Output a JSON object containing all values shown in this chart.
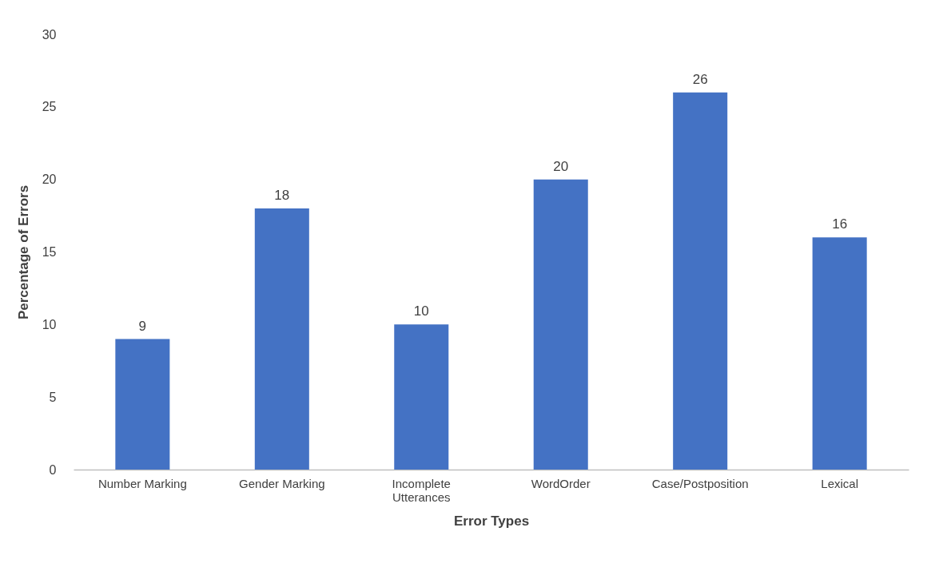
{
  "chart_data": {
    "type": "bar",
    "xlabel": "Error Types",
    "ylabel": "Percentage of Errors",
    "categories": [
      "Number Marking",
      "Gender Marking",
      "Incomplete Utterances",
      "WordOrder",
      "Case/Postposition",
      "Lexical"
    ],
    "values": [
      9,
      18,
      10,
      20,
      26,
      16
    ],
    "color": "#4472c4",
    "ylim": [
      0,
      30
    ],
    "yticks": [
      0,
      5,
      10,
      15,
      20,
      25,
      30
    ],
    "data_labels": true,
    "grid": false
  }
}
